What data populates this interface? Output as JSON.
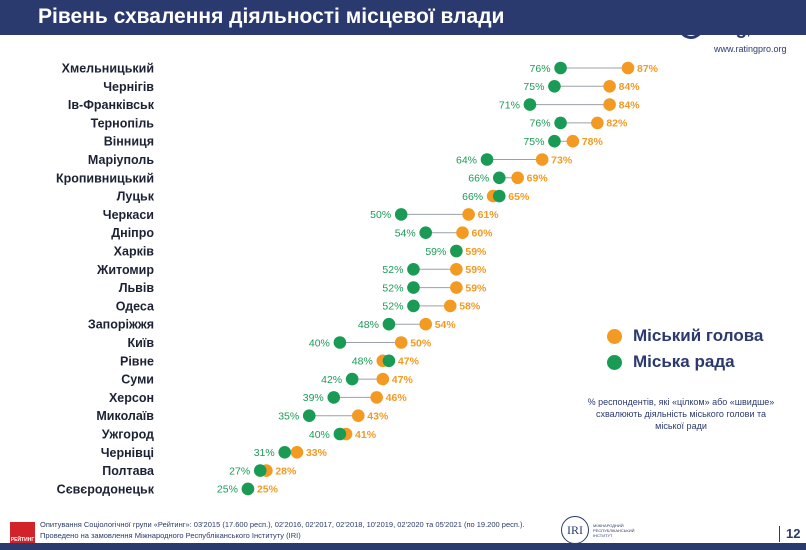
{
  "title": "Рівень схвалення діяльності місцевої влади",
  "logo": {
    "brand": "Rating",
    "suffix": "pro",
    "url": "www.ratingpro.org"
  },
  "legend": {
    "mayor_label": "Міський голова",
    "council_label": "Міська рада"
  },
  "colors": {
    "mayor": "#f39a23",
    "council": "#1a9b55",
    "header": "#2b3a6e"
  },
  "note": "% респондентів, які «цілком» або «швидше» схвалюють діяльність міського голови та міської ради",
  "footer": {
    "line1": "Опитування Соціологічної групи «Рейтинг»: 03'2015 (17.600 респ.), 02'2016, 02'2017, 02'2018, 10'2019, 02'2020 та 05'2021 (по 19.200 респ.).",
    "line2": "Проведено на замовлення Міжнародного Республіканського Інституту (IRI)",
    "logo_label": "РЕЙТИНГ",
    "iri_label": "IRI",
    "iri_caption": "МІЖНАРОДНИЙ РЕСПУБЛІКАНСЬКИЙ ІНСТИТУТ"
  },
  "page_number": "12",
  "chart_data": {
    "type": "dumbbell",
    "categories": [
      "Хмельницький",
      "Чернігів",
      "Ів-Франківськ",
      "Тернопіль",
      "Вінниця",
      "Маріуполь",
      "Кропивницький",
      "Луцьк",
      "Черкаси",
      "Дніпро",
      "Харків",
      "Житомир",
      "Львів",
      "Одеса",
      "Запоріжжя",
      "Київ",
      "Рівне",
      "Суми",
      "Херсон",
      "Миколаїв",
      "Ужгород",
      "Чернівці",
      "Полтава",
      "Сєвєродонецьк"
    ],
    "series": [
      {
        "name": "Міська рада",
        "values": [
          76,
          75,
          71,
          76,
          75,
          64,
          66,
          66,
          50,
          54,
          59,
          52,
          52,
          52,
          48,
          40,
          48,
          42,
          39,
          35,
          40,
          31,
          27,
          25
        ]
      },
      {
        "name": "Міський голова",
        "values": [
          87,
          84,
          84,
          82,
          78,
          73,
          69,
          65,
          61,
          60,
          59,
          59,
          59,
          58,
          54,
          50,
          47,
          47,
          46,
          43,
          41,
          33,
          28,
          25
        ]
      }
    ],
    "unit": "%"
  }
}
